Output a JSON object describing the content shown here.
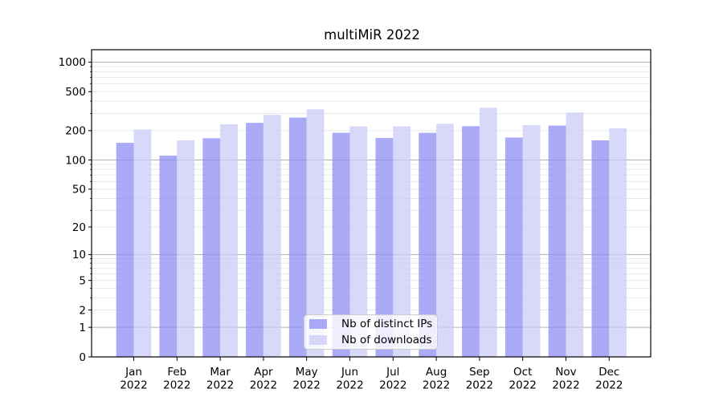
{
  "chart_data": {
    "type": "bar",
    "title": "multiMiR 2022",
    "categories": [
      "Jan 2022",
      "Feb 2022",
      "Mar 2022",
      "Apr 2022",
      "May 2022",
      "Jun 2022",
      "Jul 2022",
      "Aug 2022",
      "Sep 2022",
      "Oct 2022",
      "Nov 2022",
      "Dec 2022"
    ],
    "series": [
      {
        "name": "Nb of distinct IPs",
        "color": "rgba(142,142,243,0.75)",
        "values": [
          150,
          111,
          167,
          240,
          272,
          190,
          168,
          190,
          222,
          170,
          225,
          159
        ]
      },
      {
        "name": "Nb of downloads",
        "color": "rgba(203,203,247,0.75)",
        "values": [
          205,
          159,
          232,
          290,
          330,
          221,
          221,
          235,
          343,
          228,
          306,
          211
        ]
      }
    ],
    "xlabel": "",
    "ylabel": "",
    "yscale": "log10(1+y)",
    "yticks": [
      0,
      1,
      2,
      5,
      10,
      20,
      50,
      100,
      200,
      500,
      1000
    ],
    "ylim": [
      0,
      1340
    ],
    "grid": "on",
    "grid_major_color": "#b0b0b0",
    "grid_minor_color": "#e3e3e3",
    "axis_color": "#000000",
    "legend_position": "lower center"
  }
}
